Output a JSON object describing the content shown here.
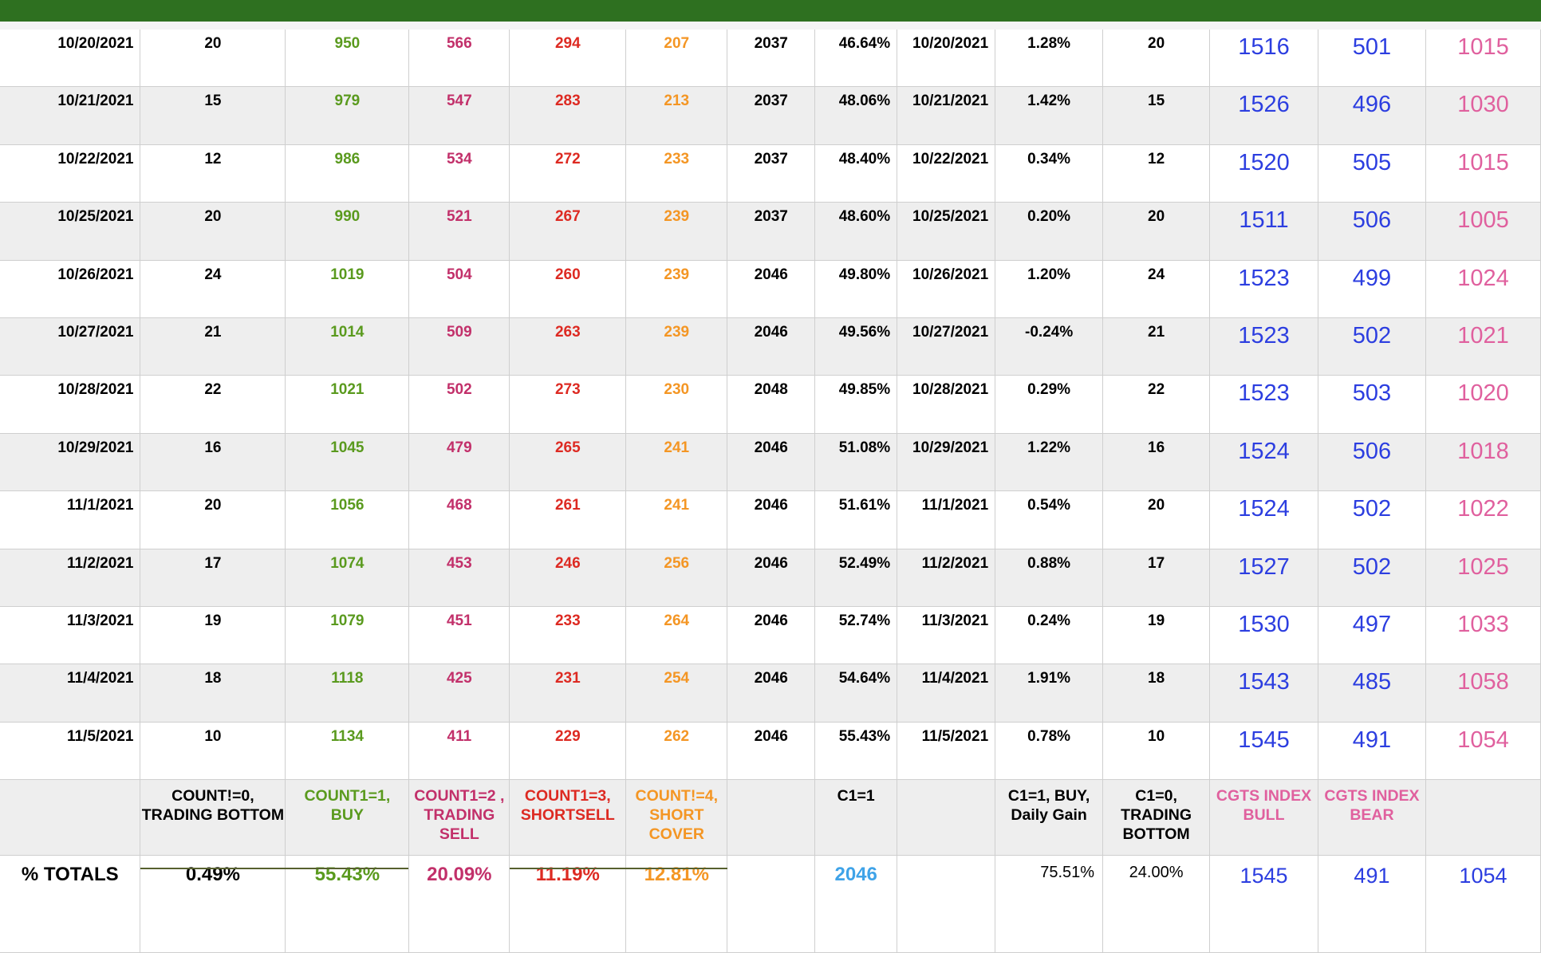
{
  "rows": [
    {
      "date": "10/20/2021",
      "c0": "20",
      "c1": "950",
      "c2": "566",
      "c3": "294",
      "c4": "207",
      "total": "2037",
      "pct": "46.64%",
      "date2": "10/20/2021",
      "gain": "1.28%",
      "c0b": "20",
      "bull": "1516",
      "bear": "501",
      "idx": "1015"
    },
    {
      "date": "10/21/2021",
      "c0": "15",
      "c1": "979",
      "c2": "547",
      "c3": "283",
      "c4": "213",
      "total": "2037",
      "pct": "48.06%",
      "date2": "10/21/2021",
      "gain": "1.42%",
      "c0b": "15",
      "bull": "1526",
      "bear": "496",
      "idx": "1030"
    },
    {
      "date": "10/22/2021",
      "c0": "12",
      "c1": "986",
      "c2": "534",
      "c3": "272",
      "c4": "233",
      "total": "2037",
      "pct": "48.40%",
      "date2": "10/22/2021",
      "gain": "0.34%",
      "c0b": "12",
      "bull": "1520",
      "bear": "505",
      "idx": "1015"
    },
    {
      "date": "10/25/2021",
      "c0": "20",
      "c1": "990",
      "c2": "521",
      "c3": "267",
      "c4": "239",
      "total": "2037",
      "pct": "48.60%",
      "date2": "10/25/2021",
      "gain": "0.20%",
      "c0b": "20",
      "bull": "1511",
      "bear": "506",
      "idx": "1005"
    },
    {
      "date": "10/26/2021",
      "c0": "24",
      "c1": "1019",
      "c2": "504",
      "c3": "260",
      "c4": "239",
      "total": "2046",
      "pct": "49.80%",
      "date2": "10/26/2021",
      "gain": "1.20%",
      "c0b": "24",
      "bull": "1523",
      "bear": "499",
      "idx": "1024"
    },
    {
      "date": "10/27/2021",
      "c0": "21",
      "c1": "1014",
      "c2": "509",
      "c3": "263",
      "c4": "239",
      "total": "2046",
      "pct": "49.56%",
      "date2": "10/27/2021",
      "gain": "-0.24%",
      "c0b": "21",
      "bull": "1523",
      "bear": "502",
      "idx": "1021"
    },
    {
      "date": "10/28/2021",
      "c0": "22",
      "c1": "1021",
      "c2": "502",
      "c3": "273",
      "c4": "230",
      "total": "2048",
      "pct": "49.85%",
      "date2": "10/28/2021",
      "gain": "0.29%",
      "c0b": "22",
      "bull": "1523",
      "bear": "503",
      "idx": "1020"
    },
    {
      "date": "10/29/2021",
      "c0": "16",
      "c1": "1045",
      "c2": "479",
      "c3": "265",
      "c4": "241",
      "total": "2046",
      "pct": "51.08%",
      "date2": "10/29/2021",
      "gain": "1.22%",
      "c0b": "16",
      "bull": "1524",
      "bear": "506",
      "idx": "1018"
    },
    {
      "date": "11/1/2021",
      "c0": "20",
      "c1": "1056",
      "c2": "468",
      "c3": "261",
      "c4": "241",
      "total": "2046",
      "pct": "51.61%",
      "date2": "11/1/2021",
      "gain": "0.54%",
      "c0b": "20",
      "bull": "1524",
      "bear": "502",
      "idx": "1022"
    },
    {
      "date": "11/2/2021",
      "c0": "17",
      "c1": "1074",
      "c2": "453",
      "c3": "246",
      "c4": "256",
      "total": "2046",
      "pct": "52.49%",
      "date2": "11/2/2021",
      "gain": "0.88%",
      "c0b": "17",
      "bull": "1527",
      "bear": "502",
      "idx": "1025"
    },
    {
      "date": "11/3/2021",
      "c0": "19",
      "c1": "1079",
      "c2": "451",
      "c3": "233",
      "c4": "264",
      "total": "2046",
      "pct": "52.74%",
      "date2": "11/3/2021",
      "gain": "0.24%",
      "c0b": "19",
      "bull": "1530",
      "bear": "497",
      "idx": "1033"
    },
    {
      "date": "11/4/2021",
      "c0": "18",
      "c1": "1118",
      "c2": "425",
      "c3": "231",
      "c4": "254",
      "total": "2046",
      "pct": "54.64%",
      "date2": "11/4/2021",
      "gain": "1.91%",
      "c0b": "18",
      "bull": "1543",
      "bear": "485",
      "idx": "1058"
    },
    {
      "date": "11/5/2021",
      "c0": "10",
      "c1": "1134",
      "c2": "411",
      "c3": "229",
      "c4": "262",
      "total": "2046",
      "pct": "55.43%",
      "date2": "11/5/2021",
      "gain": "0.78%",
      "c0b": "10",
      "bull": "1545",
      "bear": "491",
      "idx": "1054"
    }
  ],
  "labels": {
    "count0": "COUNT!=0, TRADING BOTTOM",
    "count1": "COUNT1=1, BUY",
    "count2": "COUNT1=2 , TRADING SELL",
    "count3": "COUNT1=3, SHORTSELL",
    "count4": "COUNT!=4, SHORT COVER",
    "c1": "C1=1",
    "c1buy": "C1=1, BUY, Daily Gain",
    "c0": "C1=0, TRADING BOTTOM",
    "bull": "CGTS INDEX BULL",
    "bear": "CGTS INDEX BEAR"
  },
  "totals": {
    "label": "% TOTALS",
    "count0": "0.49%",
    "count1": "55.43%",
    "count2": "20.09%",
    "count3": "11.19%",
    "count4": "12.81%",
    "c1": "2046",
    "c1buy": "75.51%",
    "c0": "24.00%",
    "bull": "1545",
    "bear": "491",
    "idx": "1054"
  },
  "colors": {
    "header_bar": "#2e7020",
    "buy_green": "#5a9a1e",
    "sell_magenta": "#c2306a",
    "short_red": "#dd2a22",
    "cover_orange": "#f49624",
    "index_blue": "#2c3ee0",
    "index_pink": "#e0609e",
    "total_blue": "#3fa3e8"
  }
}
